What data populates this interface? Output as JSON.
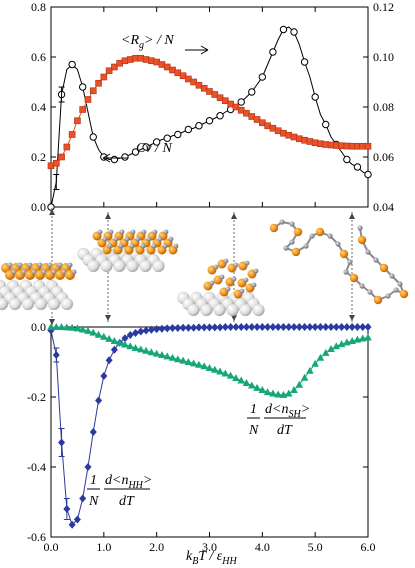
{
  "chart_data": [
    {
      "type": "line",
      "panel": "top",
      "x_range": [
        0.0,
        6.0
      ],
      "ylim_left": [
        0.0,
        0.8
      ],
      "ylim_right": [
        0.04,
        0.12
      ],
      "yticks_left": [
        "0.0",
        "0.2",
        "0.4",
        "0.6",
        "0.8"
      ],
      "yticks_right": [
        "0.04",
        "0.06",
        "0.08",
        "0.10",
        "0.12"
      ],
      "series": [
        {
          "axis": "left",
          "marker": "open-circle",
          "color": "#000000",
          "x": [
            0.0,
            0.1,
            0.2,
            0.3,
            0.4,
            0.5,
            0.6,
            0.7,
            0.8,
            0.9,
            1.0,
            1.1,
            1.2,
            1.3,
            1.4,
            1.5,
            1.6,
            1.7,
            1.8,
            1.9,
            2.0,
            2.1,
            2.2,
            2.3,
            2.4,
            2.5,
            2.6,
            2.7,
            2.8,
            2.9,
            3.0,
            3.1,
            3.2,
            3.3,
            3.4,
            3.5,
            3.6,
            3.7,
            3.8,
            3.9,
            4.0,
            4.1,
            4.2,
            4.3,
            4.4,
            4.5,
            4.6,
            4.7,
            4.8,
            4.9,
            5.0,
            5.1,
            5.2,
            5.3,
            5.4,
            5.5,
            5.6,
            5.7,
            5.8,
            5.9,
            6.0
          ],
          "y": [
            0.0,
            0.1,
            0.45,
            0.55,
            0.57,
            0.55,
            0.48,
            0.38,
            0.28,
            0.23,
            0.2,
            0.19,
            0.19,
            0.195,
            0.2,
            0.21,
            0.22,
            0.23,
            0.24,
            0.25,
            0.26,
            0.27,
            0.275,
            0.285,
            0.29,
            0.3,
            0.31,
            0.315,
            0.325,
            0.335,
            0.345,
            0.355,
            0.365,
            0.38,
            0.39,
            0.405,
            0.42,
            0.44,
            0.46,
            0.49,
            0.52,
            0.57,
            0.62,
            0.67,
            0.71,
            0.72,
            0.7,
            0.65,
            0.58,
            0.52,
            0.44,
            0.37,
            0.33,
            0.28,
            0.25,
            0.22,
            0.19,
            0.17,
            0.16,
            0.14,
            0.13
          ]
        },
        {
          "axis": "right",
          "marker": "filled-square",
          "color": "#e8512a",
          "x": [
            0.0,
            0.1,
            0.2,
            0.3,
            0.4,
            0.5,
            0.6,
            0.7,
            0.8,
            0.9,
            1.0,
            1.1,
            1.2,
            1.3,
            1.4,
            1.5,
            1.6,
            1.7,
            1.8,
            1.9,
            2.0,
            2.1,
            2.2,
            2.3,
            2.4,
            2.5,
            2.6,
            2.7,
            2.8,
            2.9,
            3.0,
            3.1,
            3.2,
            3.3,
            3.4,
            3.5,
            3.6,
            3.7,
            3.8,
            3.9,
            4.0,
            4.1,
            4.2,
            4.3,
            4.4,
            4.5,
            4.6,
            4.7,
            4.8,
            4.9,
            5.0,
            5.1,
            5.2,
            5.3,
            5.4,
            5.5,
            5.6,
            5.7,
            5.8,
            5.9,
            6.0
          ],
          "y": [
            0.0565,
            0.0575,
            0.06,
            0.064,
            0.069,
            0.0745,
            0.079,
            0.083,
            0.0865,
            0.0895,
            0.092,
            0.0945,
            0.096,
            0.0975,
            0.0985,
            0.099,
            0.0995,
            0.0995,
            0.099,
            0.0985,
            0.098,
            0.097,
            0.096,
            0.0948,
            0.0937,
            0.0925,
            0.0912,
            0.09,
            0.0887,
            0.0875,
            0.0862,
            0.085,
            0.0837,
            0.0825,
            0.0812,
            0.08,
            0.0787,
            0.0775,
            0.0762,
            0.075,
            0.0737,
            0.0725,
            0.0715,
            0.0705,
            0.0695,
            0.0687,
            0.068,
            0.0673,
            0.0667,
            0.0662,
            0.0657,
            0.0653,
            0.065,
            0.0648,
            0.0646,
            0.0645,
            0.0644,
            0.0643,
            0.0643,
            0.0643,
            0.0643
          ]
        }
      ],
      "annotations": {
        "rg_label": "<R",
        "rg_sub": "g",
        "rg_tail": "> / N",
        "cv_label": "Cv / N"
      }
    },
    {
      "type": "line",
      "panel": "bottom",
      "xlabel_main": "k",
      "xlabel_sub1": "B",
      "xlabel_mid": "T / ε",
      "xlabel_sub2": "HH",
      "xticks": [
        "0.0",
        "1.0",
        "2.0",
        "3.0",
        "4.0",
        "5.0",
        "6.0"
      ],
      "x_range": [
        0.0,
        6.0
      ],
      "ylim": [
        -0.6,
        0.0
      ],
      "yticks": [
        "0.0",
        "-0.2",
        "-0.4",
        "-0.6"
      ],
      "series": [
        {
          "marker": "filled-diamond",
          "color": "#2b3a9e",
          "x": [
            0.0,
            0.1,
            0.2,
            0.3,
            0.4,
            0.5,
            0.6,
            0.7,
            0.8,
            0.9,
            1.0,
            1.1,
            1.2,
            1.3,
            1.4,
            1.5,
            1.6,
            1.7,
            1.8,
            1.9,
            2.0,
            2.1,
            2.2,
            2.3,
            2.4,
            2.5,
            2.6,
            2.7,
            2.8,
            2.9,
            3.0,
            3.1,
            3.2,
            3.3,
            3.4,
            3.5,
            3.6,
            3.7,
            3.8,
            3.9,
            4.0,
            4.1,
            4.2,
            4.3,
            4.4,
            4.5,
            4.6,
            4.7,
            4.8,
            4.9,
            5.0,
            5.1,
            5.2,
            5.3,
            5.4,
            5.5,
            5.6,
            5.7,
            5.8,
            5.9,
            6.0
          ],
          "y": [
            -0.01,
            -0.08,
            -0.33,
            -0.52,
            -0.565,
            -0.55,
            -0.49,
            -0.4,
            -0.3,
            -0.21,
            -0.14,
            -0.095,
            -0.065,
            -0.045,
            -0.032,
            -0.023,
            -0.017,
            -0.013,
            -0.01,
            -0.008,
            -0.006,
            -0.005,
            -0.004,
            -0.003,
            -0.003,
            -0.002,
            -0.002,
            -0.002,
            -0.001,
            -0.001,
            -0.001,
            -0.001,
            -0.001,
            0.0,
            0.0,
            0.0,
            0.0,
            0.0,
            0.0,
            0.0,
            0.0,
            0.0,
            0.0,
            0.0,
            0.0,
            0.0,
            0.0,
            0.0,
            0.0,
            0.0,
            0.0,
            0.0,
            0.0,
            0.0,
            0.0,
            0.0,
            0.0,
            0.0,
            0.0,
            0.0,
            0.0
          ]
        },
        {
          "marker": "filled-triangle",
          "color": "#16a67a",
          "x": [
            0.0,
            0.1,
            0.2,
            0.3,
            0.4,
            0.5,
            0.6,
            0.7,
            0.8,
            0.9,
            1.0,
            1.1,
            1.2,
            1.3,
            1.4,
            1.5,
            1.6,
            1.7,
            1.8,
            1.9,
            2.0,
            2.1,
            2.2,
            2.3,
            2.4,
            2.5,
            2.6,
            2.7,
            2.8,
            2.9,
            3.0,
            3.1,
            3.2,
            3.3,
            3.4,
            3.5,
            3.6,
            3.7,
            3.8,
            3.9,
            4.0,
            4.1,
            4.2,
            4.3,
            4.4,
            4.5,
            4.6,
            4.7,
            4.8,
            4.9,
            5.0,
            5.1,
            5.2,
            5.3,
            5.4,
            5.5,
            5.6,
            5.7,
            5.8,
            5.9,
            6.0
          ],
          "y": [
            0.0,
            0.0,
            0.0,
            -0.001,
            -0.002,
            -0.004,
            -0.007,
            -0.011,
            -0.016,
            -0.022,
            -0.028,
            -0.034,
            -0.04,
            -0.045,
            -0.05,
            -0.055,
            -0.06,
            -0.064,
            -0.068,
            -0.072,
            -0.076,
            -0.08,
            -0.084,
            -0.088,
            -0.092,
            -0.096,
            -0.1,
            -0.104,
            -0.108,
            -0.112,
            -0.117,
            -0.122,
            -0.127,
            -0.133,
            -0.139,
            -0.146,
            -0.153,
            -0.16,
            -0.167,
            -0.174,
            -0.18,
            -0.186,
            -0.19,
            -0.193,
            -0.194,
            -0.19,
            -0.18,
            -0.165,
            -0.145,
            -0.125,
            -0.105,
            -0.088,
            -0.074,
            -0.063,
            -0.055,
            -0.049,
            -0.044,
            -0.04,
            -0.036,
            -0.033,
            -0.03
          ]
        }
      ],
      "annotations": {
        "hh_frac_pre": "1",
        "hh_frac_N": "N",
        "hh_num": "d<n",
        "hh_num_sub": "HH",
        "hh_num_tail": ">",
        "hh_den": "dT",
        "sh_frac_pre": "1",
        "sh_frac_N": "N",
        "sh_num": "d<n",
        "sh_num_sub": "SH",
        "sh_num_tail": ">",
        "sh_den": "dT"
      }
    }
  ]
}
